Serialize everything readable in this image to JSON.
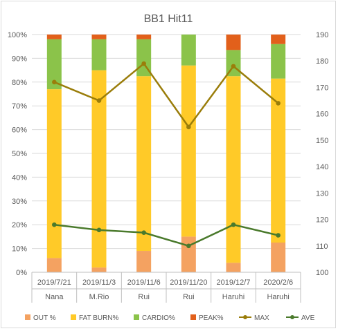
{
  "chart_data": {
    "type": "bar",
    "stacked": true,
    "title": "BB1 Hit11",
    "categories": [
      {
        "date": "2019/7/21",
        "name": "Nana"
      },
      {
        "date": "2019/11/3",
        "name": "M.Rio"
      },
      {
        "date": "2019/11/6",
        "name": "Rui"
      },
      {
        "date": "2019/11/20",
        "name": "Rui"
      },
      {
        "date": "2019/12/7",
        "name": "Haruhi"
      },
      {
        "date": "2020/2/6",
        "name": "Haruhi"
      }
    ],
    "y_left": {
      "min": 0,
      "max": 100,
      "step": 10,
      "unit": "%"
    },
    "y_right": {
      "min": 100,
      "max": 190,
      "step": 10
    },
    "bar_series": [
      {
        "name": "OUT %",
        "color": "#f4a261",
        "values": [
          6,
          2,
          9,
          15,
          4,
          12.5
        ]
      },
      {
        "name": "FAT BURN%",
        "color": "#ffca28",
        "values": [
          71,
          83,
          73.5,
          72,
          78.5,
          69
        ]
      },
      {
        "name": "CARDIO%",
        "color": "#8bc34a",
        "values": [
          21,
          13,
          15.5,
          13,
          11,
          14.5
        ]
      },
      {
        "name": "PEAK%",
        "color": "#e2601b",
        "values": [
          2,
          2,
          2,
          0,
          6.5,
          4
        ]
      }
    ],
    "line_series": [
      {
        "name": "MAX",
        "color": "#9a7d0a",
        "axis": "right",
        "values": [
          172,
          165,
          179,
          155,
          178,
          164
        ]
      },
      {
        "name": "AVE",
        "color": "#4a7a2c",
        "axis": "right",
        "values": [
          118,
          116,
          115,
          110,
          118,
          114
        ]
      }
    ],
    "grid": true,
    "legend_position": "bottom"
  }
}
